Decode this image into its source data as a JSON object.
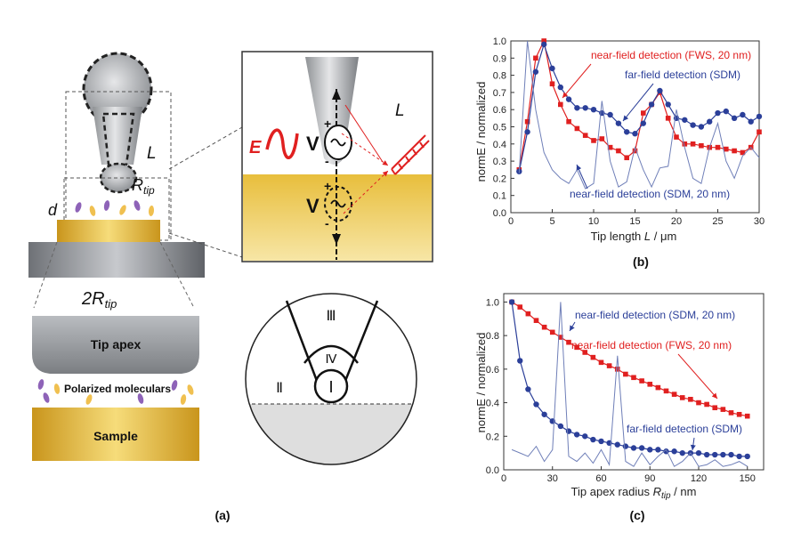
{
  "diagram": {
    "tip_length_label": "L",
    "tip_radius_label": "R",
    "tip_radius_sub": "tip",
    "distance_label": "d",
    "diameter_label": "2R",
    "diameter_sub": "tip",
    "tip_apex_label": "Tip apex",
    "molecules_label": "Polarized moleculars",
    "sample_label": "Sample",
    "field_label": "E",
    "dipole_label": "V",
    "dipole_image_label": "V",
    "plus_sign": "+",
    "minus_sign": "-",
    "inset_length_label": "L",
    "region_I": "Ⅰ",
    "region_II": "Ⅱ",
    "region_III": "Ⅲ",
    "region_IV": "Ⅳ",
    "panel_a_label": "(a)",
    "colors": {
      "gold": "#e0b230",
      "red": "#e02020",
      "blue": "#2b3f99",
      "gray": "#8a8a8a"
    }
  },
  "chart_data": [
    {
      "type": "line",
      "panel_label": "(b)",
      "ylabel": "normE / normalized",
      "xlabel": "Tip length",
      "xlabel_var": "L",
      "xlabel_unit": "/ μm",
      "xlim": [
        0,
        30
      ],
      "ylim": [
        0.0,
        1.0
      ],
      "xticks": [
        0,
        5,
        10,
        15,
        20,
        25,
        30
      ],
      "yticks": [
        0.0,
        0.1,
        0.2,
        0.3,
        0.4,
        0.5,
        0.6,
        0.7,
        0.8,
        0.9,
        1.0
      ],
      "series": [
        {
          "name": "near-field detection (FWS, 20 nm)",
          "color": "#e02020",
          "marker": "square",
          "x": [
            1,
            2,
            3,
            4,
            5,
            6,
            7,
            8,
            9,
            10,
            11,
            12,
            13,
            14,
            15,
            16,
            17,
            18,
            19,
            20,
            21,
            22,
            23,
            24,
            25,
            26,
            27,
            28,
            29,
            30
          ],
          "values": [
            0.25,
            0.53,
            0.9,
            1.0,
            0.75,
            0.63,
            0.53,
            0.49,
            0.45,
            0.42,
            0.43,
            0.38,
            0.36,
            0.32,
            0.36,
            0.58,
            0.63,
            0.7,
            0.55,
            0.44,
            0.4,
            0.4,
            0.39,
            0.38,
            0.38,
            0.37,
            0.36,
            0.35,
            0.38,
            0.47
          ]
        },
        {
          "name": "far-field detection (SDM)",
          "color": "#2b3f99",
          "marker": "circle",
          "x": [
            1,
            2,
            3,
            4,
            5,
            6,
            7,
            8,
            9,
            10,
            11,
            12,
            13,
            14,
            15,
            16,
            17,
            18,
            19,
            20,
            21,
            22,
            23,
            24,
            25,
            26,
            27,
            28,
            29,
            30
          ],
          "values": [
            0.24,
            0.47,
            0.82,
            0.98,
            0.84,
            0.73,
            0.66,
            0.61,
            0.61,
            0.6,
            0.58,
            0.57,
            0.52,
            0.47,
            0.46,
            0.52,
            0.63,
            0.71,
            0.63,
            0.55,
            0.54,
            0.51,
            0.5,
            0.53,
            0.58,
            0.59,
            0.55,
            0.57,
            0.53,
            0.56
          ]
        },
        {
          "name": "near-field detection (SDM, 20 nm)",
          "color": "#6f7fb8",
          "marker": "none",
          "x": [
            1,
            2,
            3,
            4,
            5,
            6,
            7,
            8,
            9,
            10,
            11,
            12,
            13,
            14,
            15,
            16,
            17,
            18,
            19,
            20,
            21,
            22,
            23,
            24,
            25,
            26,
            27,
            28,
            29,
            30
          ],
          "values": [
            0.23,
            1.0,
            0.6,
            0.35,
            0.25,
            0.2,
            0.17,
            0.25,
            0.14,
            0.17,
            0.65,
            0.3,
            0.15,
            0.18,
            0.38,
            0.25,
            0.15,
            0.26,
            0.27,
            0.6,
            0.38,
            0.2,
            0.17,
            0.38,
            0.52,
            0.3,
            0.2,
            0.33,
            0.38,
            0.32
          ]
        }
      ],
      "annotations": [
        {
          "text": "near-field detection (FWS, 20 nm)",
          "color": "#e02020"
        },
        {
          "text": "far-field detection (SDM)",
          "color": "#2b3f99"
        },
        {
          "text": "near-field detection (SDM, 20 nm)",
          "color": "#2b3f99"
        }
      ]
    },
    {
      "type": "line",
      "panel_label": "(c)",
      "ylabel": "normE / normalized",
      "xlabel": "Tip apex radius",
      "xlabel_var": "R",
      "xlabel_sub": "tip",
      "xlabel_unit": "/ nm",
      "xlim": [
        0,
        160
      ],
      "ylim": [
        0.0,
        1.05
      ],
      "xticks": [
        0,
        30,
        60,
        90,
        120,
        150
      ],
      "yticks": [
        0.0,
        0.2,
        0.4,
        0.6,
        0.8,
        1.0
      ],
      "series": [
        {
          "name": "near-field detection (FWS, 20 nm)",
          "color": "#e02020",
          "marker": "square",
          "x": [
            5,
            10,
            15,
            20,
            25,
            30,
            35,
            40,
            45,
            50,
            55,
            60,
            65,
            70,
            75,
            80,
            85,
            90,
            95,
            100,
            105,
            110,
            115,
            120,
            125,
            130,
            135,
            140,
            145,
            150
          ],
          "values": [
            1.0,
            0.97,
            0.93,
            0.89,
            0.85,
            0.82,
            0.79,
            0.76,
            0.73,
            0.7,
            0.67,
            0.64,
            0.62,
            0.6,
            0.57,
            0.55,
            0.53,
            0.51,
            0.49,
            0.47,
            0.45,
            0.43,
            0.42,
            0.4,
            0.39,
            0.37,
            0.36,
            0.34,
            0.33,
            0.32
          ]
        },
        {
          "name": "far-field detection (SDM)",
          "color": "#2b3f99",
          "marker": "circle",
          "x": [
            5,
            10,
            15,
            20,
            25,
            30,
            35,
            40,
            45,
            50,
            55,
            60,
            65,
            70,
            75,
            80,
            85,
            90,
            95,
            100,
            105,
            110,
            115,
            120,
            125,
            130,
            135,
            140,
            145,
            150
          ],
          "values": [
            1.0,
            0.65,
            0.48,
            0.39,
            0.33,
            0.29,
            0.26,
            0.23,
            0.21,
            0.2,
            0.18,
            0.17,
            0.16,
            0.15,
            0.14,
            0.13,
            0.13,
            0.12,
            0.12,
            0.11,
            0.11,
            0.1,
            0.1,
            0.1,
            0.09,
            0.09,
            0.09,
            0.09,
            0.08,
            0.08
          ]
        },
        {
          "name": "near-field detection (SDM, 20 nm)",
          "color": "#6f7fb8",
          "marker": "none",
          "x": [
            5,
            10,
            15,
            20,
            25,
            30,
            35,
            40,
            45,
            50,
            55,
            60,
            65,
            70,
            75,
            80,
            85,
            90,
            95,
            100,
            105,
            110,
            115,
            120,
            125,
            130,
            135,
            140,
            145,
            150
          ],
          "values": [
            0.12,
            0.1,
            0.08,
            0.14,
            0.05,
            0.12,
            1.0,
            0.08,
            0.05,
            0.1,
            0.04,
            0.12,
            0.03,
            0.68,
            0.05,
            0.02,
            0.1,
            0.03,
            0.08,
            0.12,
            0.02,
            0.05,
            0.1,
            0.02,
            0.03,
            0.06,
            0.02,
            0.03,
            0.05,
            0.02
          ]
        }
      ],
      "annotations": [
        {
          "text": "near-field detection (SDM, 20 nm)",
          "color": "#2b3f99"
        },
        {
          "text": "near-field detection (FWS, 20 nm)",
          "color": "#e02020"
        },
        {
          "text": "far-field detection (SDM)",
          "color": "#2b3f99"
        }
      ]
    }
  ]
}
